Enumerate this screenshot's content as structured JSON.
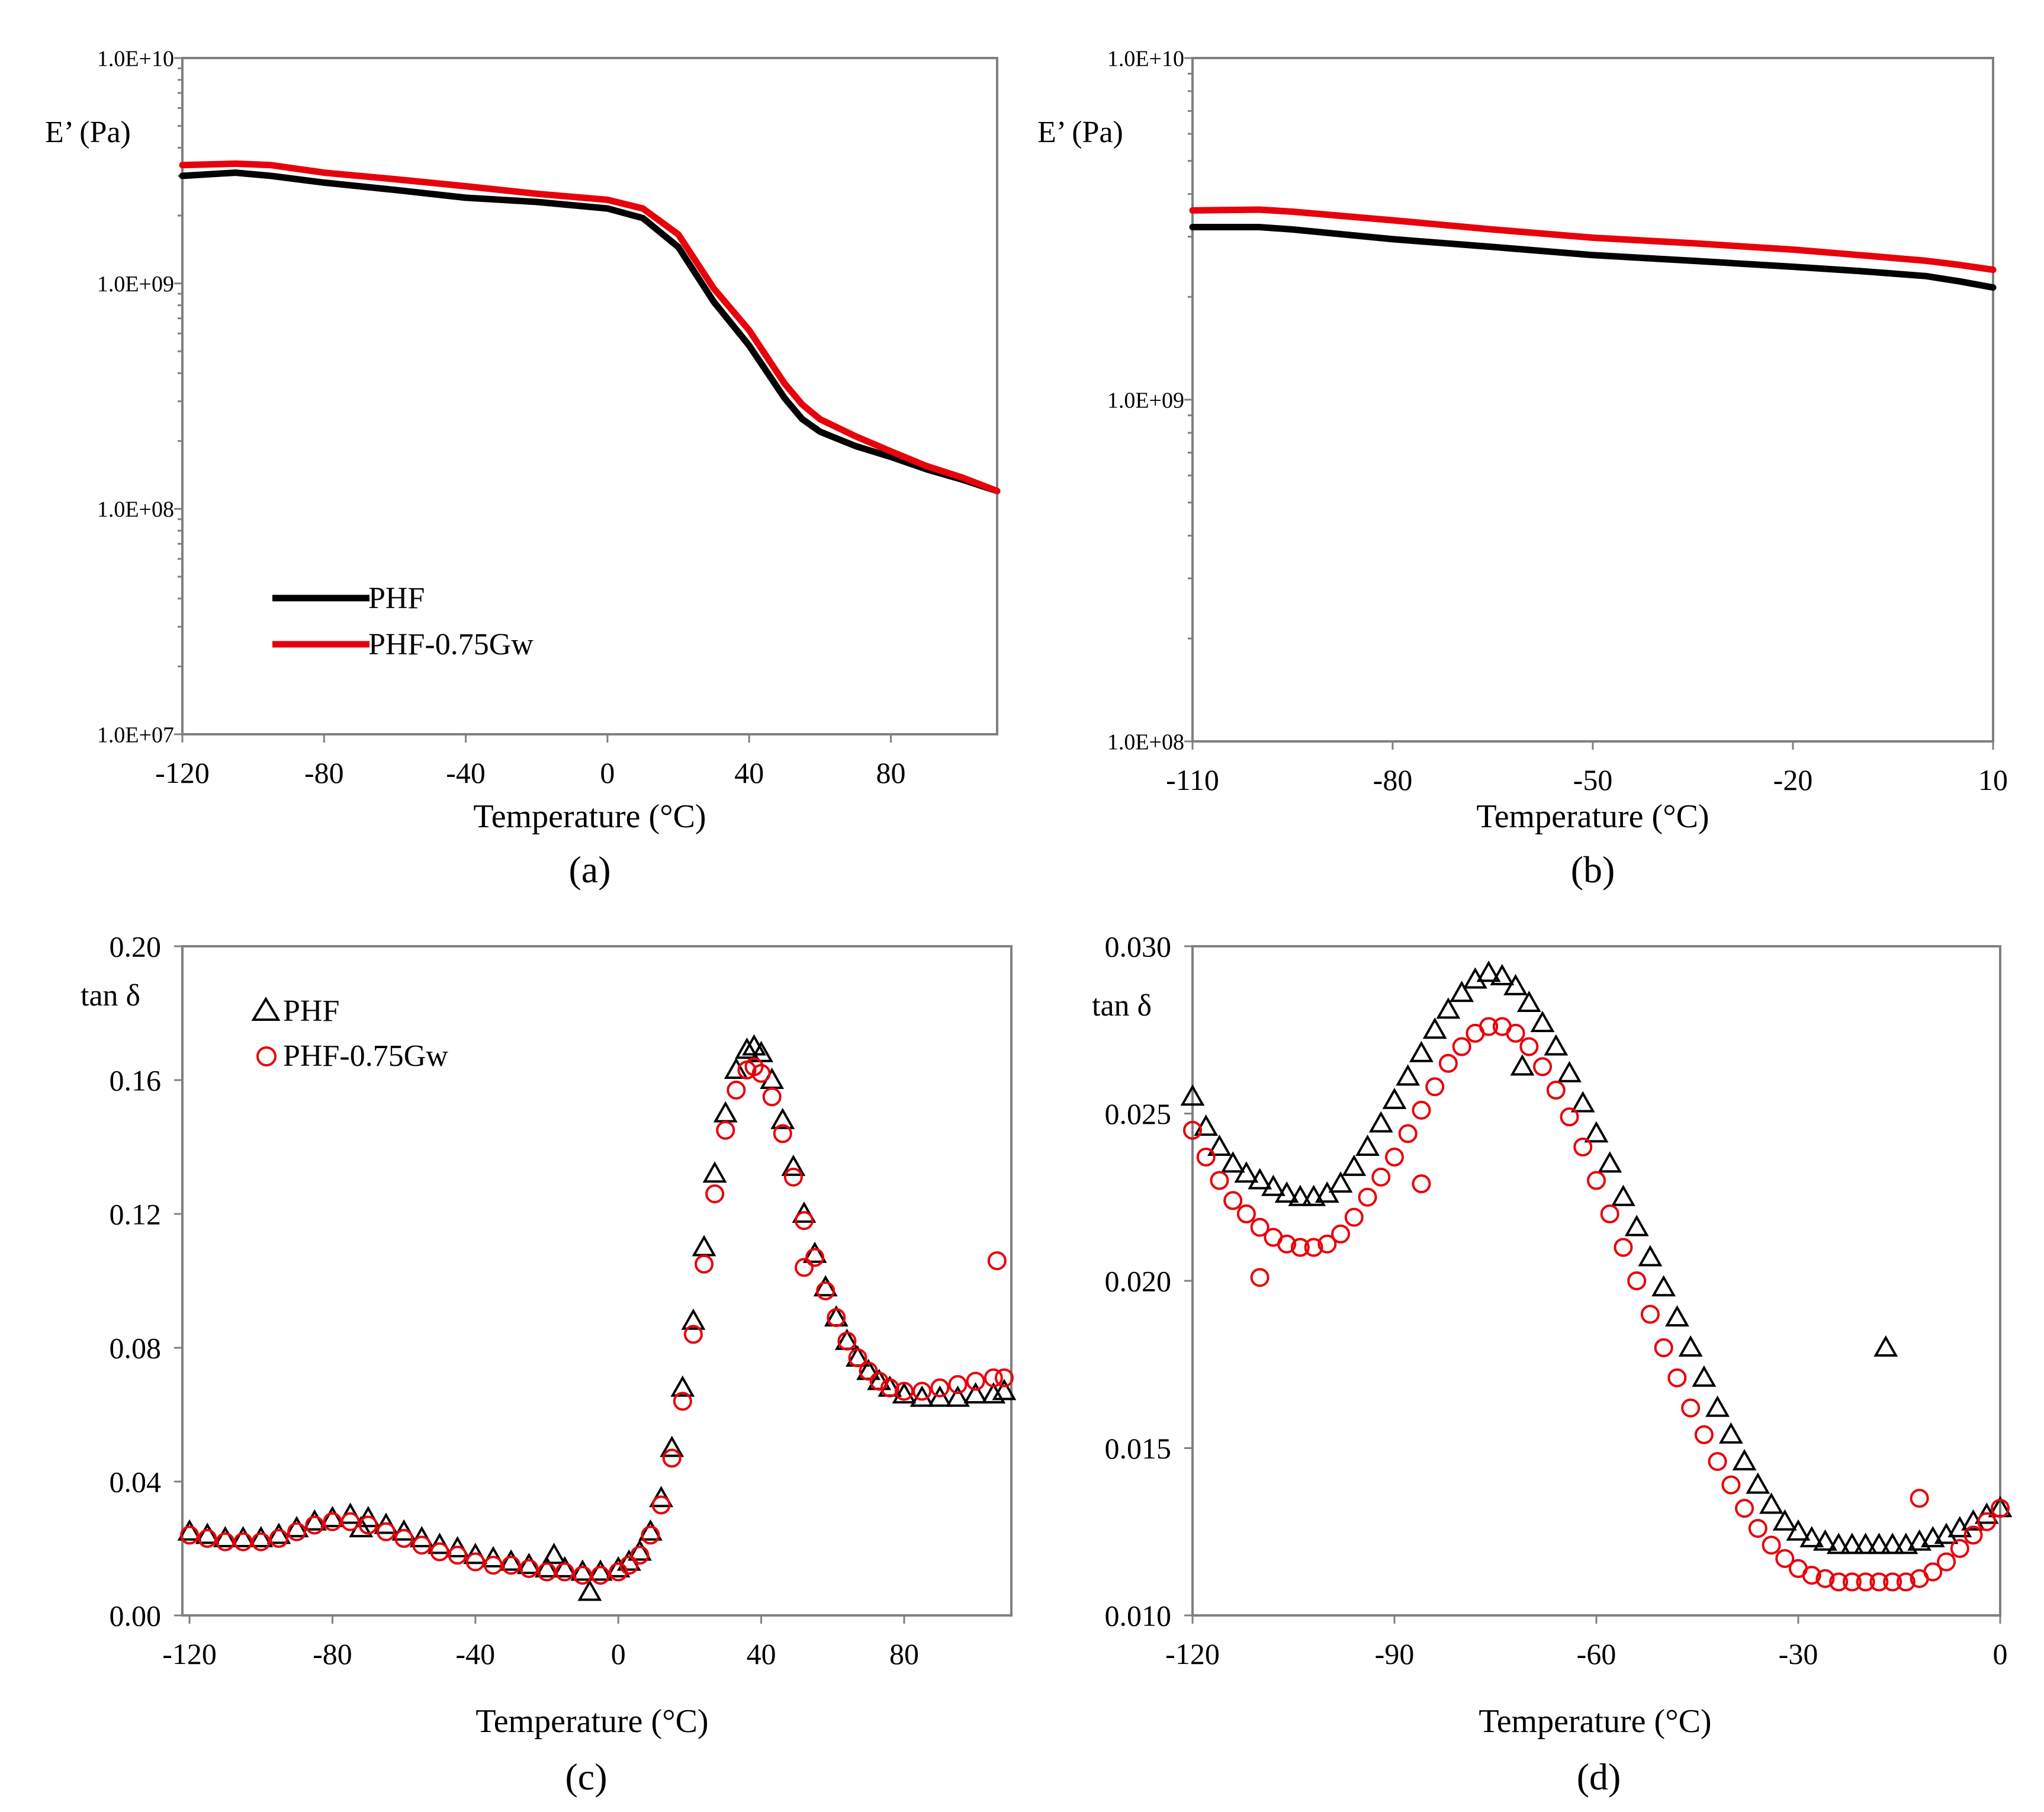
{
  "colors": {
    "PHF": "#000000",
    "PHF-0.75Gw": "#e8000b",
    "frame": "#808080"
  },
  "chart_data": [
    {
      "panel": "(a)",
      "type": "line",
      "title": "",
      "xlabel": "Temperature (°C)",
      "ylabel": "E’ (Pa)",
      "yscale": "log",
      "xlim": [
        -120,
        110
      ],
      "ylim": [
        10000000,
        10000000000
      ],
      "xticks": [
        -120,
        -80,
        -40,
        0,
        40,
        80
      ],
      "xtick_labels": [
        "-120",
        "-80",
        "-40",
        "0",
        "40",
        "80"
      ],
      "yticks": [
        10000000,
        100000000,
        1000000000,
        10000000000
      ],
      "ytick_labels": [
        "1.0E+07",
        "1.0E+08",
        "1.0E+09",
        "1.0E+10"
      ],
      "legend": {
        "placement": "bottom-left",
        "labels": [
          "PHF",
          "PHF-0.75Gw"
        ]
      },
      "series": [
        {
          "name": "PHF",
          "color": "#000000",
          "x": [
            -120,
            -105,
            -95,
            -80,
            -60,
            -40,
            -20,
            0,
            10,
            20,
            30,
            40,
            50,
            55,
            60,
            70,
            80,
            90,
            100,
            110
          ],
          "y": [
            3000000000,
            3100000000,
            3000000000,
            2800000000,
            2600000000,
            2400000000,
            2300000000,
            2150000000,
            1950000000,
            1450000000,
            830000000,
            530000000,
            310000000,
            250000000,
            220000000,
            190000000,
            170000000,
            150000000,
            135000000,
            120000000
          ]
        },
        {
          "name": "PHF-0.75Gw",
          "color": "#e8000b",
          "x": [
            -120,
            -105,
            -95,
            -80,
            -60,
            -40,
            -20,
            0,
            10,
            20,
            30,
            40,
            50,
            55,
            60,
            70,
            80,
            90,
            100,
            110
          ],
          "y": [
            3350000000,
            3400000000,
            3350000000,
            3100000000,
            2900000000,
            2700000000,
            2500000000,
            2350000000,
            2150000000,
            1650000000,
            950000000,
            620000000,
            360000000,
            290000000,
            250000000,
            210000000,
            180000000,
            155000000,
            138000000,
            120000000
          ]
        }
      ]
    },
    {
      "panel": "(b)",
      "type": "line",
      "title": "",
      "xlabel": "Temperature (°C)",
      "ylabel": "E’ (Pa)",
      "yscale": "log",
      "xlim": [
        -110,
        10
      ],
      "ylim": [
        100000000,
        10000000000
      ],
      "xticks": [
        -110,
        -80,
        -50,
        -20,
        10
      ],
      "xtick_labels": [
        "-110",
        "-80",
        "-50",
        "-20",
        "10"
      ],
      "yticks": [
        100000000,
        1000000000,
        10000000000
      ],
      "ytick_labels": [
        "1.0E+08",
        "1.0E+09",
        "1.0E+10"
      ],
      "series": [
        {
          "name": "PHF",
          "color": "#000000",
          "x": [
            -110,
            -100,
            -95,
            -80,
            -65,
            -50,
            -35,
            -20,
            -10,
            0,
            5,
            10
          ],
          "y": [
            3200000000,
            3200000000,
            3150000000,
            2950000000,
            2800000000,
            2650000000,
            2550000000,
            2450000000,
            2380000000,
            2300000000,
            2220000000,
            2130000000
          ]
        },
        {
          "name": "PHF-0.75Gw",
          "color": "#e8000b",
          "x": [
            -110,
            -100,
            -95,
            -80,
            -65,
            -50,
            -35,
            -20,
            -10,
            0,
            5,
            10
          ],
          "y": [
            3580000000,
            3600000000,
            3550000000,
            3350000000,
            3150000000,
            2980000000,
            2870000000,
            2750000000,
            2650000000,
            2550000000,
            2480000000,
            2400000000
          ]
        }
      ]
    },
    {
      "panel": "(c)",
      "type": "scatter",
      "title": "",
      "xlabel": "Temperature (°C)",
      "ylabel": "tan δ",
      "xlim": [
        -122,
        110
      ],
      "ylim": [
        0,
        0.2
      ],
      "xticks": [
        -120,
        -80,
        -40,
        0,
        40,
        80
      ],
      "xtick_labels": [
        "-120",
        "-80",
        "-40",
        "0",
        "40",
        "80"
      ],
      "yticks": [
        0,
        0.04,
        0.08,
        0.12,
        0.16,
        0.2
      ],
      "ytick_labels": [
        "0.00",
        "0.04",
        "0.08",
        "0.12",
        "0.16",
        "0.20"
      ],
      "legend": {
        "placement": "top-left",
        "labels": [
          "PHF",
          "PHF-0.75Gw"
        ]
      },
      "series": [
        {
          "name": "PHF",
          "marker": "triangle",
          "color": "#000000",
          "x": [
            -120,
            -115,
            -110,
            -105,
            -100,
            -95,
            -90,
            -85,
            -80,
            -75,
            -70,
            -65,
            -60,
            -55,
            -50,
            -45,
            -40,
            -35,
            -30,
            -25,
            -20,
            -15,
            -10,
            -5,
            0,
            3,
            6,
            9,
            12,
            15,
            18,
            21,
            24,
            27,
            30,
            33,
            36,
            38,
            40,
            43,
            46,
            49,
            52,
            55,
            58,
            61,
            64,
            67,
            70,
            73,
            76,
            80,
            85,
            90,
            95,
            100,
            105,
            108,
            -18,
            -8,
            -72
          ],
          "y": [
            0.025,
            0.024,
            0.023,
            0.023,
            0.023,
            0.024,
            0.026,
            0.028,
            0.029,
            0.03,
            0.029,
            0.027,
            0.025,
            0.023,
            0.021,
            0.02,
            0.018,
            0.017,
            0.016,
            0.015,
            0.014,
            0.014,
            0.013,
            0.013,
            0.014,
            0.016,
            0.019,
            0.025,
            0.035,
            0.05,
            0.068,
            0.088,
            0.11,
            0.132,
            0.15,
            0.163,
            0.169,
            0.17,
            0.168,
            0.16,
            0.148,
            0.134,
            0.12,
            0.108,
            0.098,
            0.089,
            0.082,
            0.077,
            0.073,
            0.07,
            0.068,
            0.066,
            0.065,
            0.065,
            0.065,
            0.066,
            0.066,
            0.067,
            0.018,
            0.007,
            0.026
          ]
        },
        {
          "name": "PHF-0.75Gw",
          "marker": "circle",
          "color": "#e8000b",
          "x": [
            -120,
            -115,
            -110,
            -105,
            -100,
            -95,
            -90,
            -85,
            -80,
            -75,
            -70,
            -65,
            -60,
            -55,
            -50,
            -45,
            -40,
            -35,
            -30,
            -25,
            -20,
            -15,
            -10,
            -5,
            0,
            3,
            6,
            9,
            12,
            15,
            18,
            21,
            24,
            27,
            30,
            33,
            36,
            38,
            40,
            43,
            46,
            49,
            52,
            55,
            58,
            61,
            64,
            67,
            70,
            73,
            76,
            80,
            85,
            90,
            95,
            100,
            105,
            108,
            52,
            106
          ],
          "y": [
            0.024,
            0.023,
            0.022,
            0.022,
            0.022,
            0.023,
            0.025,
            0.027,
            0.028,
            0.028,
            0.027,
            0.025,
            0.023,
            0.021,
            0.019,
            0.018,
            0.016,
            0.015,
            0.015,
            0.014,
            0.013,
            0.013,
            0.012,
            0.012,
            0.013,
            0.015,
            0.018,
            0.024,
            0.033,
            0.047,
            0.064,
            0.084,
            0.105,
            0.126,
            0.145,
            0.157,
            0.163,
            0.164,
            0.162,
            0.155,
            0.144,
            0.131,
            0.118,
            0.107,
            0.097,
            0.089,
            0.082,
            0.077,
            0.073,
            0.07,
            0.068,
            0.067,
            0.067,
            0.068,
            0.069,
            0.07,
            0.071,
            0.071,
            0.104,
            0.106
          ]
        }
      ]
    },
    {
      "panel": "(d)",
      "type": "scatter",
      "title": "",
      "xlabel": "Temperature (°C)",
      "ylabel": "tan δ",
      "xlim": [
        -120,
        0
      ],
      "ylim": [
        0.01,
        0.03
      ],
      "xticks": [
        -120,
        -90,
        -60,
        -30,
        0
      ],
      "xtick_labels": [
        "-120",
        "-90",
        "-60",
        "-30",
        "0"
      ],
      "yticks": [
        0.01,
        0.015,
        0.02,
        0.025,
        0.03
      ],
      "ytick_labels": [
        "0.010",
        "0.015",
        "0.020",
        "0.025",
        "0.030"
      ],
      "series": [
        {
          "name": "PHF",
          "marker": "triangle",
          "color": "#000000",
          "x": [
            -120,
            -118,
            -116,
            -114,
            -112,
            -110,
            -108,
            -106,
            -104,
            -102,
            -100,
            -98,
            -96,
            -94,
            -92,
            -90,
            -88,
            -86,
            -84,
            -82,
            -80,
            -78,
            -76,
            -74,
            -72,
            -70,
            -68,
            -66,
            -64,
            -62,
            -60,
            -58,
            -56,
            -54,
            -52,
            -50,
            -48,
            -46,
            -44,
            -42,
            -40,
            -38,
            -36,
            -34,
            -32,
            -30,
            -28,
            -26,
            -24,
            -22,
            -20,
            -18,
            -16,
            -14,
            -12,
            -10,
            -8,
            -6,
            -4,
            -2,
            0,
            -17,
            -71
          ],
          "y": [
            0.0255,
            0.0246,
            0.024,
            0.0235,
            0.0232,
            0.023,
            0.0228,
            0.0226,
            0.0225,
            0.0225,
            0.0226,
            0.0229,
            0.0234,
            0.024,
            0.0247,
            0.0254,
            0.0261,
            0.0268,
            0.0275,
            0.0281,
            0.0286,
            0.029,
            0.0292,
            0.0291,
            0.0288,
            0.0283,
            0.0277,
            0.027,
            0.0262,
            0.0253,
            0.0244,
            0.0235,
            0.0225,
            0.0216,
            0.0207,
            0.0198,
            0.0189,
            0.018,
            0.0171,
            0.0162,
            0.0154,
            0.0146,
            0.0139,
            0.0133,
            0.0128,
            0.0125,
            0.0123,
            0.0122,
            0.0121,
            0.0121,
            0.0121,
            0.0121,
            0.0121,
            0.0121,
            0.0122,
            0.0123,
            0.0124,
            0.0126,
            0.0128,
            0.013,
            0.0132,
            0.018,
            0.0264
          ]
        },
        {
          "name": "PHF-0.75Gw",
          "marker": "circle",
          "color": "#e8000b",
          "x": [
            -120,
            -118,
            -116,
            -114,
            -112,
            -110,
            -108,
            -106,
            -104,
            -102,
            -100,
            -98,
            -96,
            -94,
            -92,
            -90,
            -88,
            -86,
            -84,
            -82,
            -80,
            -78,
            -76,
            -74,
            -72,
            -70,
            -68,
            -66,
            -64,
            -62,
            -60,
            -58,
            -56,
            -54,
            -52,
            -50,
            -48,
            -46,
            -44,
            -42,
            -40,
            -38,
            -36,
            -34,
            -32,
            -30,
            -28,
            -26,
            -24,
            -22,
            -20,
            -18,
            -16,
            -14,
            -12,
            -10,
            -8,
            -6,
            -4,
            -2,
            0,
            -110,
            -86,
            -12
          ],
          "y": [
            0.0245,
            0.0237,
            0.023,
            0.0224,
            0.022,
            0.0216,
            0.0213,
            0.0211,
            0.021,
            0.021,
            0.0211,
            0.0214,
            0.0219,
            0.0225,
            0.0231,
            0.0237,
            0.0244,
            0.0251,
            0.0258,
            0.0265,
            0.027,
            0.0274,
            0.0276,
            0.0276,
            0.0274,
            0.027,
            0.0264,
            0.0257,
            0.0249,
            0.024,
            0.023,
            0.022,
            0.021,
            0.02,
            0.019,
            0.018,
            0.0171,
            0.0162,
            0.0154,
            0.0146,
            0.0139,
            0.0132,
            0.0126,
            0.0121,
            0.0117,
            0.0114,
            0.0112,
            0.0111,
            0.011,
            0.011,
            0.011,
            0.011,
            0.011,
            0.011,
            0.0111,
            0.0113,
            0.0116,
            0.012,
            0.0124,
            0.0128,
            0.0132,
            0.0201,
            0.0229,
            0.0135
          ]
        }
      ]
    }
  ]
}
